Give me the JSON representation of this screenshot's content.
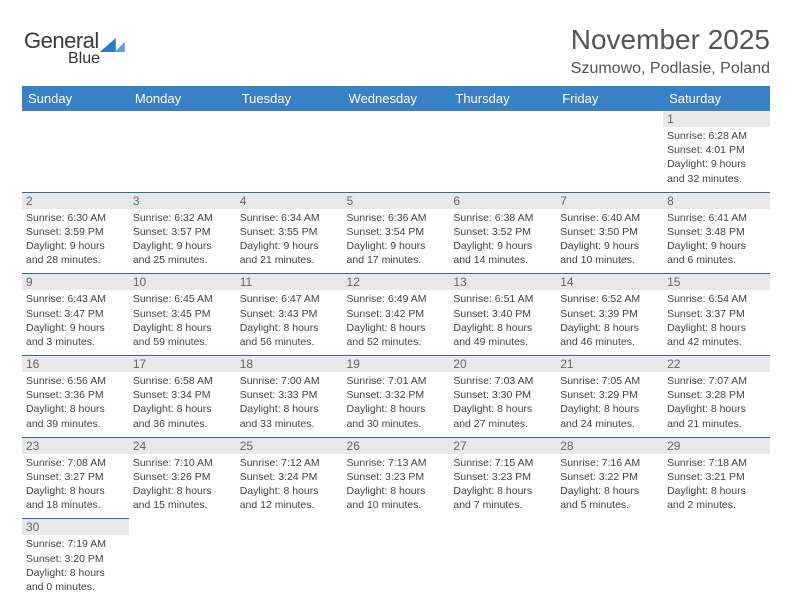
{
  "brand": {
    "word1": "General",
    "word2": "Blue"
  },
  "title": "November 2025",
  "location": "Szumowo, Podlasie, Poland",
  "colors": {
    "header_bg": "#3a80c4",
    "row_border": "#2f6aa8",
    "daynum_bg": "#e8e8e8",
    "brand_blue": "#2f79c2"
  },
  "dayNames": [
    "Sunday",
    "Monday",
    "Tuesday",
    "Wednesday",
    "Thursday",
    "Friday",
    "Saturday"
  ],
  "weeks": [
    [
      null,
      null,
      null,
      null,
      null,
      null,
      {
        "n": "1",
        "sr": "Sunrise: 6:28 AM",
        "ss": "Sunset: 4:01 PM",
        "dl": "Daylight: 9 hours and 32 minutes."
      }
    ],
    [
      {
        "n": "2",
        "sr": "Sunrise: 6:30 AM",
        "ss": "Sunset: 3:59 PM",
        "dl": "Daylight: 9 hours and 28 minutes."
      },
      {
        "n": "3",
        "sr": "Sunrise: 6:32 AM",
        "ss": "Sunset: 3:57 PM",
        "dl": "Daylight: 9 hours and 25 minutes."
      },
      {
        "n": "4",
        "sr": "Sunrise: 6:34 AM",
        "ss": "Sunset: 3:55 PM",
        "dl": "Daylight: 9 hours and 21 minutes."
      },
      {
        "n": "5",
        "sr": "Sunrise: 6:36 AM",
        "ss": "Sunset: 3:54 PM",
        "dl": "Daylight: 9 hours and 17 minutes."
      },
      {
        "n": "6",
        "sr": "Sunrise: 6:38 AM",
        "ss": "Sunset: 3:52 PM",
        "dl": "Daylight: 9 hours and 14 minutes."
      },
      {
        "n": "7",
        "sr": "Sunrise: 6:40 AM",
        "ss": "Sunset: 3:50 PM",
        "dl": "Daylight: 9 hours and 10 minutes."
      },
      {
        "n": "8",
        "sr": "Sunrise: 6:41 AM",
        "ss": "Sunset: 3:48 PM",
        "dl": "Daylight: 9 hours and 6 minutes."
      }
    ],
    [
      {
        "n": "9",
        "sr": "Sunrise: 6:43 AM",
        "ss": "Sunset: 3:47 PM",
        "dl": "Daylight: 9 hours and 3 minutes."
      },
      {
        "n": "10",
        "sr": "Sunrise: 6:45 AM",
        "ss": "Sunset: 3:45 PM",
        "dl": "Daylight: 8 hours and 59 minutes."
      },
      {
        "n": "11",
        "sr": "Sunrise: 6:47 AM",
        "ss": "Sunset: 3:43 PM",
        "dl": "Daylight: 8 hours and 56 minutes."
      },
      {
        "n": "12",
        "sr": "Sunrise: 6:49 AM",
        "ss": "Sunset: 3:42 PM",
        "dl": "Daylight: 8 hours and 52 minutes."
      },
      {
        "n": "13",
        "sr": "Sunrise: 6:51 AM",
        "ss": "Sunset: 3:40 PM",
        "dl": "Daylight: 8 hours and 49 minutes."
      },
      {
        "n": "14",
        "sr": "Sunrise: 6:52 AM",
        "ss": "Sunset: 3:39 PM",
        "dl": "Daylight: 8 hours and 46 minutes."
      },
      {
        "n": "15",
        "sr": "Sunrise: 6:54 AM",
        "ss": "Sunset: 3:37 PM",
        "dl": "Daylight: 8 hours and 42 minutes."
      }
    ],
    [
      {
        "n": "16",
        "sr": "Sunrise: 6:56 AM",
        "ss": "Sunset: 3:36 PM",
        "dl": "Daylight: 8 hours and 39 minutes."
      },
      {
        "n": "17",
        "sr": "Sunrise: 6:58 AM",
        "ss": "Sunset: 3:34 PM",
        "dl": "Daylight: 8 hours and 36 minutes."
      },
      {
        "n": "18",
        "sr": "Sunrise: 7:00 AM",
        "ss": "Sunset: 3:33 PM",
        "dl": "Daylight: 8 hours and 33 minutes."
      },
      {
        "n": "19",
        "sr": "Sunrise: 7:01 AM",
        "ss": "Sunset: 3:32 PM",
        "dl": "Daylight: 8 hours and 30 minutes."
      },
      {
        "n": "20",
        "sr": "Sunrise: 7:03 AM",
        "ss": "Sunset: 3:30 PM",
        "dl": "Daylight: 8 hours and 27 minutes."
      },
      {
        "n": "21",
        "sr": "Sunrise: 7:05 AM",
        "ss": "Sunset: 3:29 PM",
        "dl": "Daylight: 8 hours and 24 minutes."
      },
      {
        "n": "22",
        "sr": "Sunrise: 7:07 AM",
        "ss": "Sunset: 3:28 PM",
        "dl": "Daylight: 8 hours and 21 minutes."
      }
    ],
    [
      {
        "n": "23",
        "sr": "Sunrise: 7:08 AM",
        "ss": "Sunset: 3:27 PM",
        "dl": "Daylight: 8 hours and 18 minutes."
      },
      {
        "n": "24",
        "sr": "Sunrise: 7:10 AM",
        "ss": "Sunset: 3:26 PM",
        "dl": "Daylight: 8 hours and 15 minutes."
      },
      {
        "n": "25",
        "sr": "Sunrise: 7:12 AM",
        "ss": "Sunset: 3:24 PM",
        "dl": "Daylight: 8 hours and 12 minutes."
      },
      {
        "n": "26",
        "sr": "Sunrise: 7:13 AM",
        "ss": "Sunset: 3:23 PM",
        "dl": "Daylight: 8 hours and 10 minutes."
      },
      {
        "n": "27",
        "sr": "Sunrise: 7:15 AM",
        "ss": "Sunset: 3:23 PM",
        "dl": "Daylight: 8 hours and 7 minutes."
      },
      {
        "n": "28",
        "sr": "Sunrise: 7:16 AM",
        "ss": "Sunset: 3:22 PM",
        "dl": "Daylight: 8 hours and 5 minutes."
      },
      {
        "n": "29",
        "sr": "Sunrise: 7:18 AM",
        "ss": "Sunset: 3:21 PM",
        "dl": "Daylight: 8 hours and 2 minutes."
      }
    ],
    [
      {
        "n": "30",
        "sr": "Sunrise: 7:19 AM",
        "ss": "Sunset: 3:20 PM",
        "dl": "Daylight: 8 hours and 0 minutes."
      },
      null,
      null,
      null,
      null,
      null,
      null
    ]
  ]
}
